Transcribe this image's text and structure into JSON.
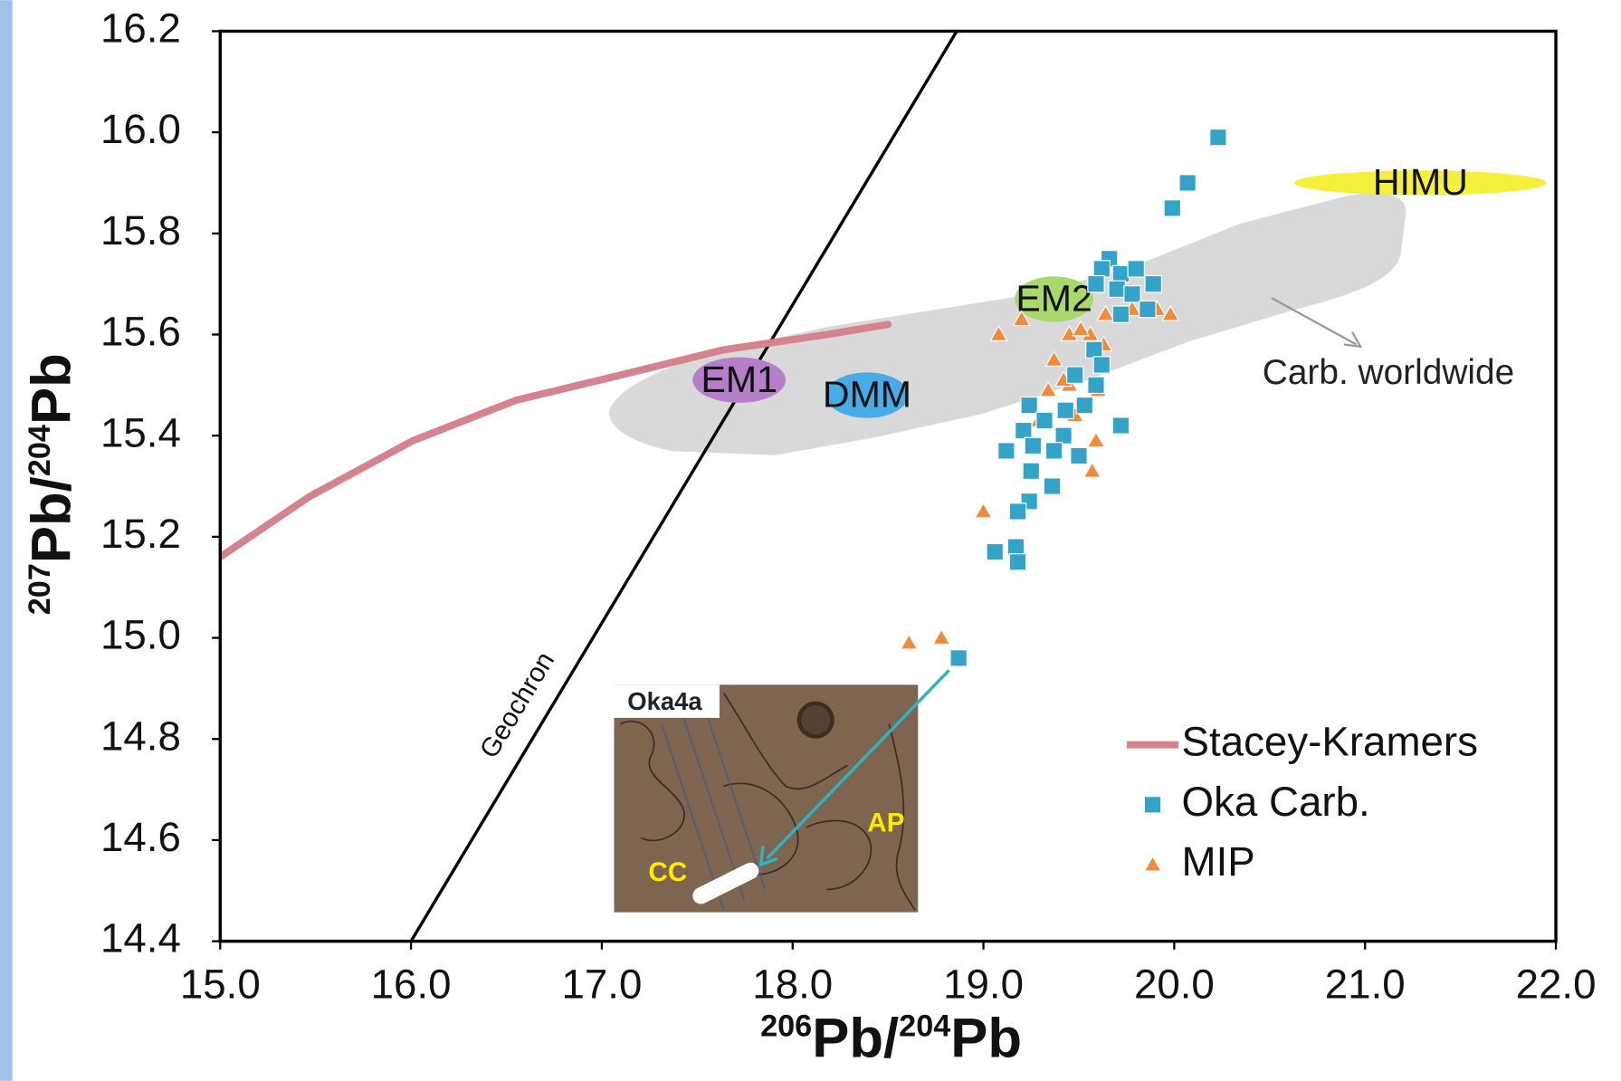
{
  "chart_data": {
    "type": "scatter",
    "xlabel": [
      "206",
      "Pb/",
      "204",
      "Pb"
    ],
    "ylabel": [
      "207",
      "Pb/",
      "204",
      "Pb"
    ],
    "xlim": [
      15,
      22
    ],
    "ylim": [
      14.4,
      16.2
    ],
    "xticks": [
      {
        "value": 15,
        "label": "15.0"
      },
      {
        "value": 16,
        "label": "16.0"
      },
      {
        "value": 17,
        "label": "17.0"
      },
      {
        "value": 18,
        "label": "18.0"
      },
      {
        "value": 19,
        "label": "19.0"
      },
      {
        "value": 20,
        "label": "20.0"
      },
      {
        "value": 21,
        "label": "21.0"
      },
      {
        "value": 22,
        "label": "22.0"
      }
    ],
    "yticks": [
      14.4,
      14.6,
      14.8,
      {
        "value": 15,
        "label": "15.0"
      },
      15.2,
      15.4,
      15.6,
      15.8,
      {
        "value": 16,
        "label": "16.0"
      },
      16.2
    ],
    "legend": "lower right",
    "series": [
      {
        "name": "Stacey-Kramers",
        "kind": "line",
        "color": "#d4838f",
        "x": [
          15.0,
          15.47,
          16.01,
          16.55,
          17.1,
          17.64,
          18.18,
          18.5
        ],
        "values": [
          15.16,
          15.28,
          15.39,
          15.47,
          15.52,
          15.57,
          15.6,
          15.62
        ]
      },
      {
        "name": "Oka Carb.",
        "kind": "points",
        "marker": "square",
        "color": "#33a4c8",
        "x": [
          20.23,
          20.07,
          19.99,
          19.66,
          19.62,
          19.72,
          19.8,
          19.89,
          19.7,
          19.78,
          19.59,
          19.86,
          19.72,
          19.58,
          19.62,
          19.48,
          19.59,
          19.53,
          19.24,
          19.43,
          19.32,
          19.72,
          19.21,
          19.42,
          19.26,
          19.37,
          19.12,
          19.5,
          19.25,
          19.36,
          19.24,
          19.18,
          19.06,
          19.17,
          19.18,
          18.87
        ],
        "values": [
          15.99,
          15.9,
          15.85,
          15.75,
          15.73,
          15.72,
          15.73,
          15.7,
          15.69,
          15.68,
          15.7,
          15.65,
          15.64,
          15.57,
          15.54,
          15.52,
          15.5,
          15.46,
          15.46,
          15.45,
          15.43,
          15.42,
          15.41,
          15.4,
          15.38,
          15.37,
          15.37,
          15.36,
          15.33,
          15.3,
          15.27,
          15.25,
          15.17,
          15.18,
          15.15,
          14.96
        ]
      },
      {
        "name": "MIP",
        "kind": "points",
        "marker": "triangle",
        "color": "#f28a3a",
        "x": [
          18.61,
          18.78,
          19.0,
          19.08,
          19.2,
          19.45,
          19.56,
          19.51,
          19.64,
          19.78,
          19.91,
          19.98,
          19.63,
          19.37,
          19.34,
          19.45,
          19.6,
          19.29,
          19.48,
          19.59,
          19.57,
          19.42
        ],
        "values": [
          14.99,
          15.0,
          15.25,
          15.6,
          15.63,
          15.6,
          15.6,
          15.61,
          15.64,
          15.65,
          15.65,
          15.64,
          15.58,
          15.55,
          15.49,
          15.5,
          15.49,
          15.43,
          15.44,
          15.39,
          15.33,
          15.51
        ]
      }
    ],
    "geochron": {
      "label": "Geochron",
      "x": [
        16.0,
        18.86
      ],
      "y": [
        14.4,
        16.2
      ]
    },
    "reservoirs": [
      {
        "label": "EM1",
        "x": 17.72,
        "y": 15.51,
        "color": "#b57fc9"
      },
      {
        "label": "DMM",
        "x": 18.39,
        "y": 15.48,
        "color": "#45ace6"
      },
      {
        "label": "EM2",
        "x": 19.37,
        "y": 15.67,
        "color": "#a9d96c"
      },
      {
        "label": "HIMU",
        "x": 21.29,
        "y": 15.9,
        "color": "#f4f03c"
      }
    ],
    "field_label": "Carb. worldwide",
    "inset": {
      "title": "Oka4a",
      "labels": [
        "AP",
        "CC"
      ]
    }
  }
}
